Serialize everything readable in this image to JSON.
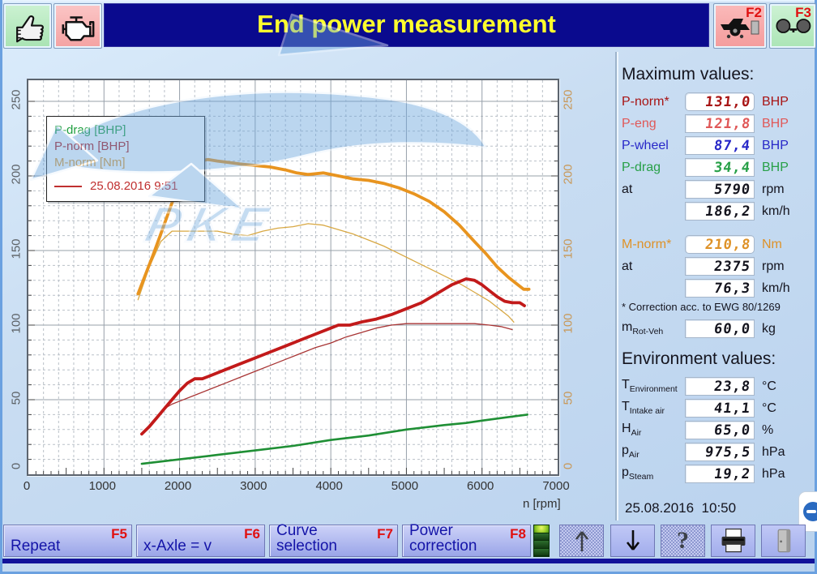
{
  "window": {
    "title": "End power measurement"
  },
  "topbar": {
    "f2_key": "F2",
    "f3_key": "F3"
  },
  "watermark": {
    "text": "PKE"
  },
  "chart": {
    "xlabel": "n [rpm]",
    "x_ticks": [
      0,
      1000,
      2000,
      3000,
      4000,
      5000,
      6000,
      7000
    ],
    "y_ticks": [
      0,
      50,
      100,
      150,
      200,
      250
    ],
    "legend": {
      "items": [
        {
          "label": "P-drag [BHP]",
          "color": "#1e9e3e"
        },
        {
          "label": "P-norm [BHP]",
          "color": "#b01818"
        },
        {
          "label": "M-norm [Nm]",
          "color": "#e09a30"
        }
      ],
      "ref_label": "25.08.2016 9:51",
      "ref_color": "#c03030"
    }
  },
  "chart_data": {
    "type": "line",
    "title": "",
    "xlabel": "n [rpm]",
    "ylabel": "",
    "xlim": [
      0,
      7000
    ],
    "ylim": [
      0,
      250
    ],
    "grid": true,
    "legend_position": "top-left",
    "series": [
      {
        "name": "P-norm 25.08.2016 9:51 [BHP]",
        "color": "#a83434",
        "width": 1.3,
        "x": [
          1500,
          1650,
          1800,
          1900,
          2000,
          2200,
          2400,
          2600,
          2800,
          3000,
          3200,
          3400,
          3600,
          3800,
          4000,
          4200,
          4400,
          4600,
          4800,
          5000,
          5300,
          5600,
          5900,
          6100,
          6250,
          6400
        ],
        "y": [
          27,
          36,
          44,
          47,
          49,
          53,
          57,
          61,
          65,
          69,
          73,
          77,
          81,
          85,
          88,
          92,
          95,
          98,
          100,
          101,
          101,
          101,
          101,
          100,
          99,
          97
        ]
      },
      {
        "name": "M-norm 25.08.2016 9:51 [Nm]",
        "color": "#d8a843",
        "width": 1.3,
        "x": [
          1450,
          1600,
          1750,
          1900,
          2100,
          2300,
          2500,
          2700,
          2900,
          3100,
          3300,
          3500,
          3700,
          3900,
          4100,
          4300,
          4500,
          4700,
          4900,
          5100,
          5300,
          5500,
          5700,
          5900,
          6100,
          6250,
          6350,
          6420
        ],
        "y": [
          117,
          139,
          156,
          163,
          163,
          163,
          163,
          161,
          160,
          163,
          165,
          166,
          168,
          167,
          164,
          161,
          157,
          153,
          148,
          143,
          138,
          133,
          128,
          122,
          116,
          110,
          106,
          102
        ]
      },
      {
        "name": "P-drag [BHP]",
        "color": "#1f8f35",
        "width": 2.6,
        "x": [
          1500,
          2000,
          2500,
          3000,
          3500,
          4000,
          4500,
          5000,
          5500,
          5790,
          6000,
          6300,
          6600
        ],
        "y": [
          7,
          10,
          13,
          16,
          19,
          23,
          26,
          30,
          33,
          34.4,
          36,
          38,
          40
        ]
      },
      {
        "name": "M-norm current [Nm]",
        "color": "#e8941f",
        "width": 3.8,
        "x": [
          1450,
          1550,
          1650,
          1750,
          1850,
          1950,
          2050,
          2150,
          2250,
          2375,
          2500,
          2650,
          2800,
          3000,
          3200,
          3400,
          3550,
          3700,
          3900,
          4100,
          4300,
          4500,
          4700,
          4900,
          5100,
          5300,
          5500,
          5700,
          5900,
          6050,
          6200,
          6350,
          6450,
          6550,
          6620
        ],
        "y": [
          121,
          134,
          147,
          161,
          175,
          189,
          199,
          206,
          210,
          211,
          210,
          209,
          208,
          207,
          206,
          204,
          202,
          201,
          202,
          200,
          198,
          197,
          195,
          192,
          188,
          183,
          176,
          167,
          156,
          148,
          139,
          132,
          128,
          124,
          124
        ]
      },
      {
        "name": "P-norm current [BHP]",
        "color": "#c21a1a",
        "width": 3.8,
        "x": [
          1500,
          1600,
          1700,
          1800,
          1900,
          2000,
          2100,
          2200,
          2300,
          2400,
          2600,
          2800,
          3000,
          3200,
          3400,
          3600,
          3800,
          4000,
          4100,
          4250,
          4400,
          4600,
          4800,
          5000,
          5200,
          5400,
          5600,
          5790,
          5900,
          6000,
          6100,
          6200,
          6300,
          6400,
          6500,
          6560
        ],
        "y": [
          27,
          32,
          38,
          44,
          50,
          56,
          61,
          64,
          64,
          66,
          70,
          74,
          78,
          82,
          86,
          90,
          94,
          98,
          100,
          100,
          102,
          104,
          107,
          111,
          115,
          121,
          127,
          131,
          130,
          127,
          123,
          119,
          116,
          115,
          115,
          113
        ]
      }
    ]
  },
  "max_values": {
    "heading": "Maximum values:",
    "rows": [
      {
        "label": "P-norm*",
        "value": "131,0",
        "unit": "BHP"
      },
      {
        "label": "P-eng",
        "value": "121,8",
        "unit": "BHP"
      },
      {
        "label": "P-wheel",
        "value": "87,4",
        "unit": "BHP"
      },
      {
        "label": "P-drag",
        "value": "34,4",
        "unit": "BHP"
      },
      {
        "label": "at",
        "value": "5790",
        "unit": "rpm"
      },
      {
        "label": "",
        "value": "186,2",
        "unit": "km/h"
      }
    ],
    "torque_rows": [
      {
        "label": "M-norm*",
        "value": "210,8",
        "unit": "Nm"
      },
      {
        "label": "at",
        "value": "2375",
        "unit": "rpm"
      },
      {
        "label": "",
        "value": "76,3",
        "unit": "km/h"
      }
    ],
    "note": "* Correction acc. to EWG 80/1269",
    "mass_row": {
      "label_main": "m",
      "label_sub": "Rot-Veh",
      "value": "60,0",
      "unit": "kg"
    }
  },
  "env_values": {
    "heading": "Environment values:",
    "rows": [
      {
        "label_main": "T",
        "label_sub": "Environment",
        "value": "23,8",
        "unit": "°C"
      },
      {
        "label_main": "T",
        "label_sub": "Intake air",
        "value": "41,1",
        "unit": "°C"
      },
      {
        "label_main": "H",
        "label_sub": "Air",
        "value": "65,0",
        "unit": "%"
      },
      {
        "label_main": "p",
        "label_sub": "Air",
        "value": "975,5",
        "unit": "hPa"
      },
      {
        "label_main": "p",
        "label_sub": "Steam",
        "value": "19,2",
        "unit": "hPa"
      }
    ]
  },
  "datetime": "25.08.2016  10:50",
  "footer": {
    "buttons": [
      {
        "label": "Repeat",
        "key": "F5"
      },
      {
        "label": "x-Axle = v",
        "key": "F6"
      },
      {
        "label": "Curve selection",
        "key": "F7"
      },
      {
        "label": "Power correction",
        "key": "F8"
      }
    ]
  },
  "colors": {
    "titlebar_bg": "#0a0a8e",
    "title_text": "#ffff2d",
    "highlight_power": "#da1414",
    "highlight_torque": "#e8952a",
    "p_norm": "#a81414",
    "p_eng": "#e05858",
    "p_wheel": "#2828c8",
    "p_drag": "#28a048",
    "m_norm": "#de9228",
    "fkey_red": "#e01010",
    "footer_button_bg": "#aab4ee",
    "footer_text": "#1414a8"
  }
}
